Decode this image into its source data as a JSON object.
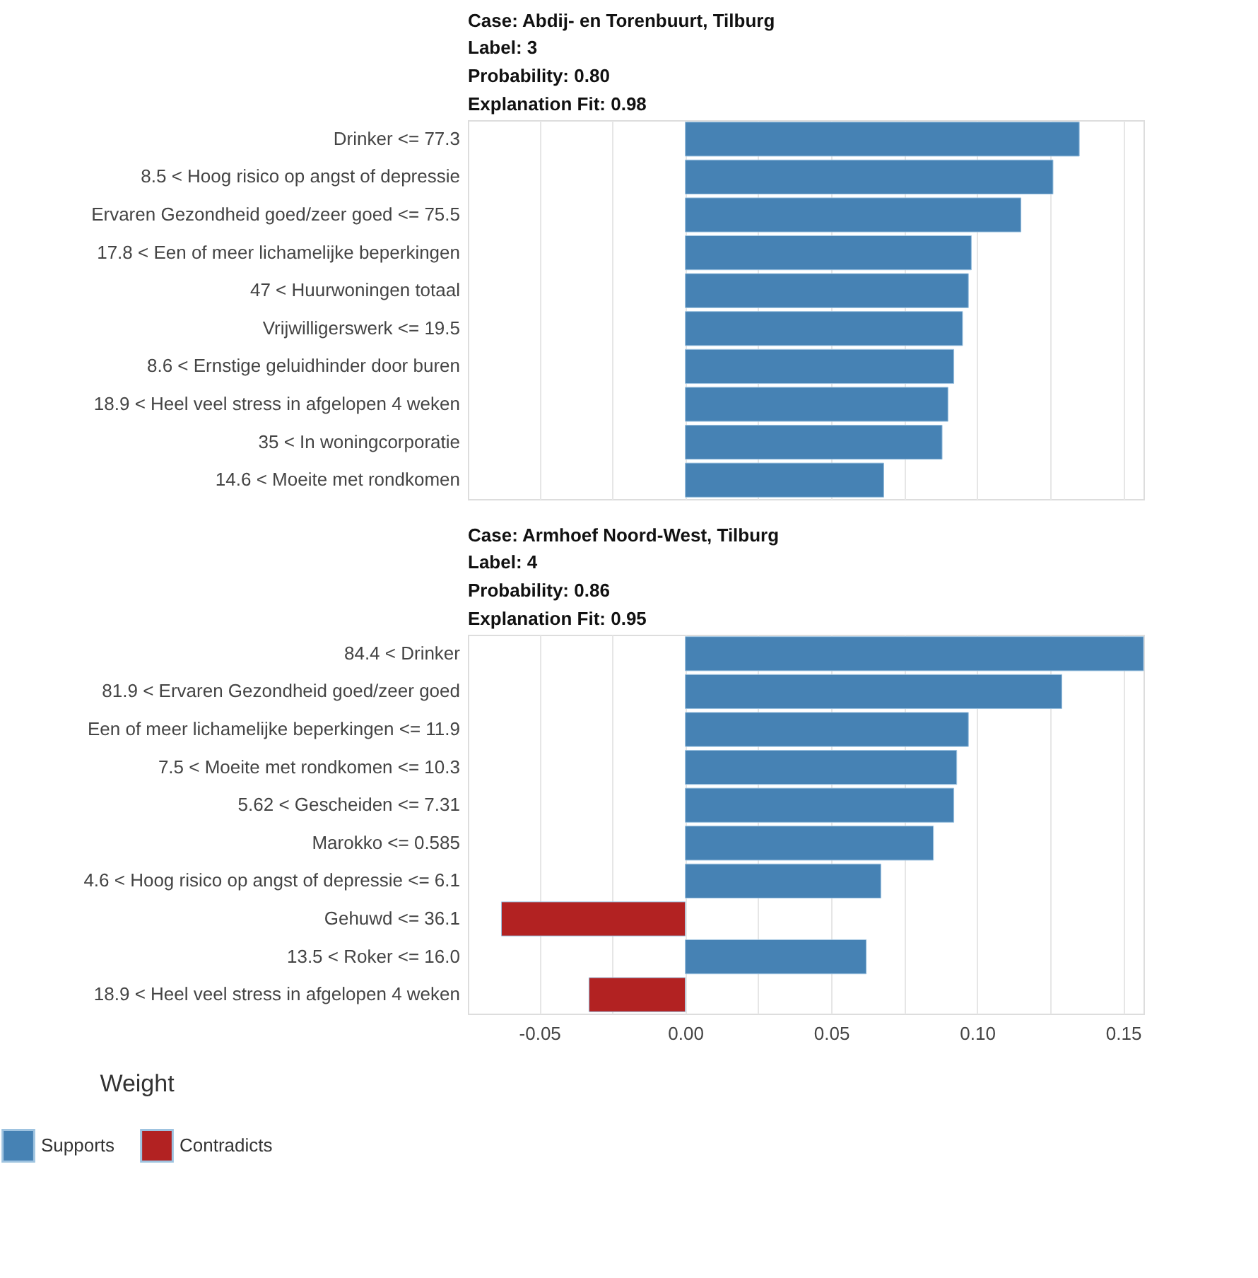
{
  "chart_data": [
    {
      "type": "bar",
      "orientation": "horizontal",
      "title": "Case: Abdij- en Torenbuurt, Tilburg",
      "subtitle": "Label: 3\nProbability: 0.80\nExplanation Fit: 0.98",
      "categories": [
        "Drinker <= 77.3",
        "8.5 < Hoog risico op angst of depressie",
        "Ervaren Gezondheid goed/zeer goed <= 75.5",
        "17.8 < Een of meer lichamelijke  beperkingen",
        "47 < Huurwoningen totaal",
        "Vrijwilligerswerk <= 19.5",
        "8.6 < Ernstige geluidhinder door buren",
        "18.9 < Heel veel stress in afgelopen 4 weken",
        "35 < In woningcorporatie",
        "14.6 < Moeite met rondkomen "
      ],
      "series": [
        {
          "color": "#4682b4",
          "values": [
            0.135,
            0.126,
            0.115,
            0.098,
            0.097,
            0.095,
            0.092,
            0.09,
            0.088,
            0.068
          ]
        }
      ],
      "xlim": [
        -0.0745,
        0.157
      ],
      "xticks": [
        {
          "value": -0.05,
          "label": null
        },
        {
          "value": -0.025,
          "label": null
        },
        {
          "value": 0,
          "label": null
        },
        {
          "value": 0.025,
          "label": null
        },
        {
          "value": 0.05,
          "label": null
        },
        {
          "value": 0.075,
          "label": null
        },
        {
          "value": 0.1,
          "label": null
        },
        {
          "value": 0.125,
          "label": null
        },
        {
          "value": 0.15,
          "label": null
        }
      ],
      "grid": "x",
      "tick_labels": "y"
    },
    {
      "type": "bar",
      "orientation": "horizontal",
      "title": "Case: Armhoef Noord-West, Tilburg",
      "subtitle": "Label: 4\nProbability: 0.86\nExplanation Fit: 0.95",
      "categories": [
        "84.4 < Drinker",
        "81.9 < Ervaren Gezondheid goed/zeer goed",
        "Een of meer lichamelijke  beperkingen <= 11.9",
        "7.5 < Moeite met rondkomen  <= 10.3",
        "5.62 < Gescheiden <= 7.31",
        "Marokko <= 0.585",
        "4.6 < Hoog risico op angst of depressie <= 6.1",
        "Gehuwd <= 36.1",
        "13.5 < Roker <= 16.0",
        "18.9 < Heel veel stress in afgelopen 4 weken"
      ],
      "series": [
        {
          "name": "Supports",
          "color": "#4682b4",
          "values": [
            0.157,
            0.129,
            0.097,
            0.093,
            0.092,
            0.085,
            0.067,
            null,
            0.062,
            null
          ]
        },
        {
          "name": "Contradicts",
          "color": "#b22222",
          "values": [
            null,
            null,
            null,
            null,
            null,
            null,
            null,
            -0.063,
            null,
            -0.033
          ]
        }
      ],
      "xlim": [
        -0.0745,
        0.157
      ],
      "xticks": [
        -0.05,
        {
          "value": -0.025,
          "label": null
        },
        {
          "value": 0,
          "label": "0.00"
        },
        {
          "value": 0.025,
          "label": null
        },
        0.05,
        {
          "value": 0.075,
          "label": null
        },
        {
          "value": 0.1,
          "label": "0.10"
        },
        {
          "value": 0.125,
          "label": null
        },
        0.15
      ],
      "grid": "x",
      "legend": "bottom left",
      "legend_title": "Weight"
    }
  ]
}
